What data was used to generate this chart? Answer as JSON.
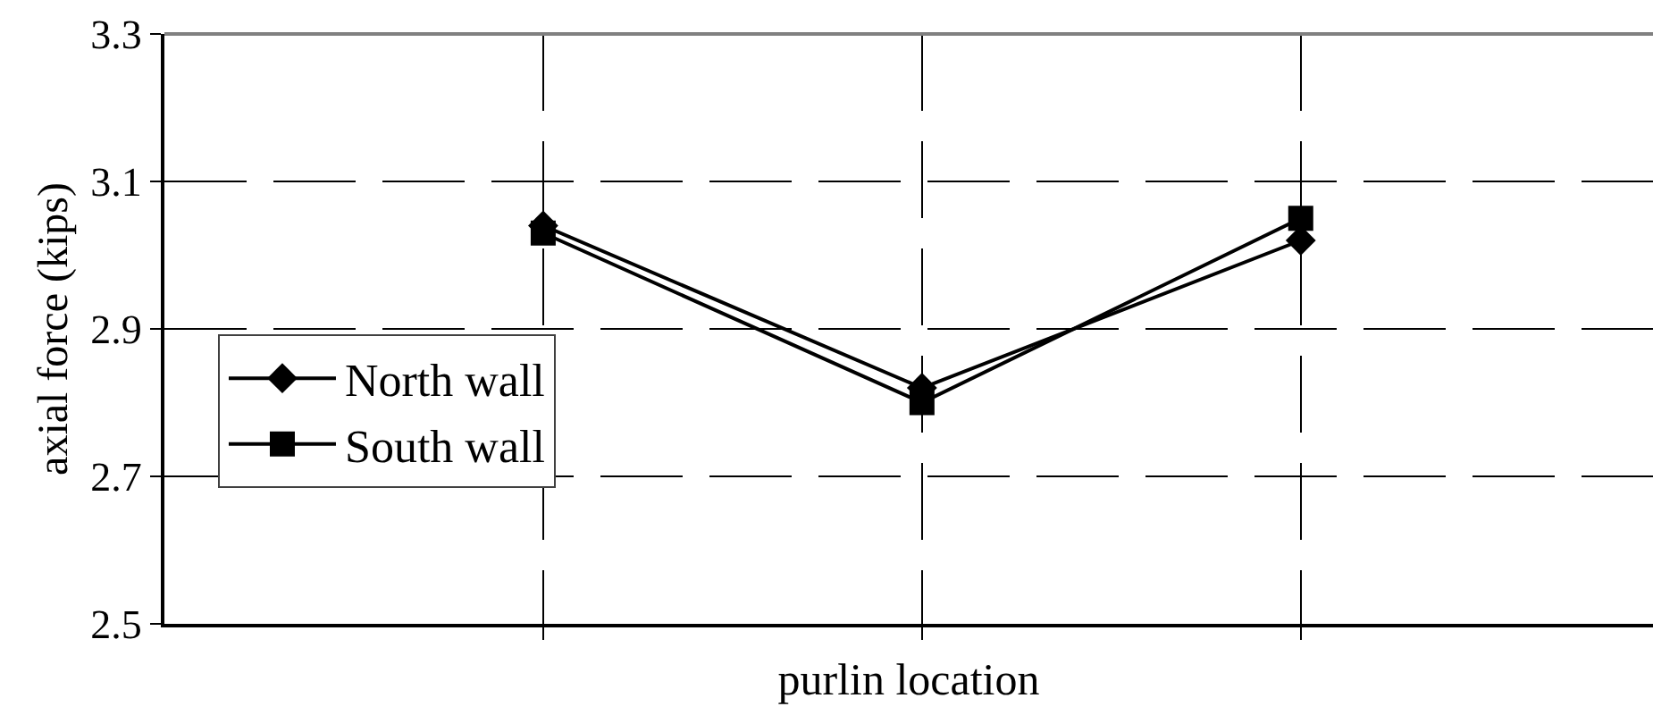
{
  "chart_data": {
    "type": "line",
    "xlabel": "purlin location",
    "ylabel": "axial force (kips)",
    "categories": [
      null,
      null,
      null
    ],
    "series": [
      {
        "name": "North wall",
        "color": "#000000",
        "marker": "diamond",
        "values": [
          3.04,
          2.82,
          3.02
        ]
      },
      {
        "name": "South wall",
        "color": "#000000",
        "marker": "square",
        "values": [
          3.03,
          2.8,
          3.05
        ]
      }
    ],
    "ylim": [
      2.5,
      3.3
    ],
    "yticks": [
      2.5,
      2.7,
      2.9,
      3.1,
      3.3
    ],
    "grid": true,
    "legend": "left",
    "line_style": "solid",
    "tick_labels": "y"
  }
}
